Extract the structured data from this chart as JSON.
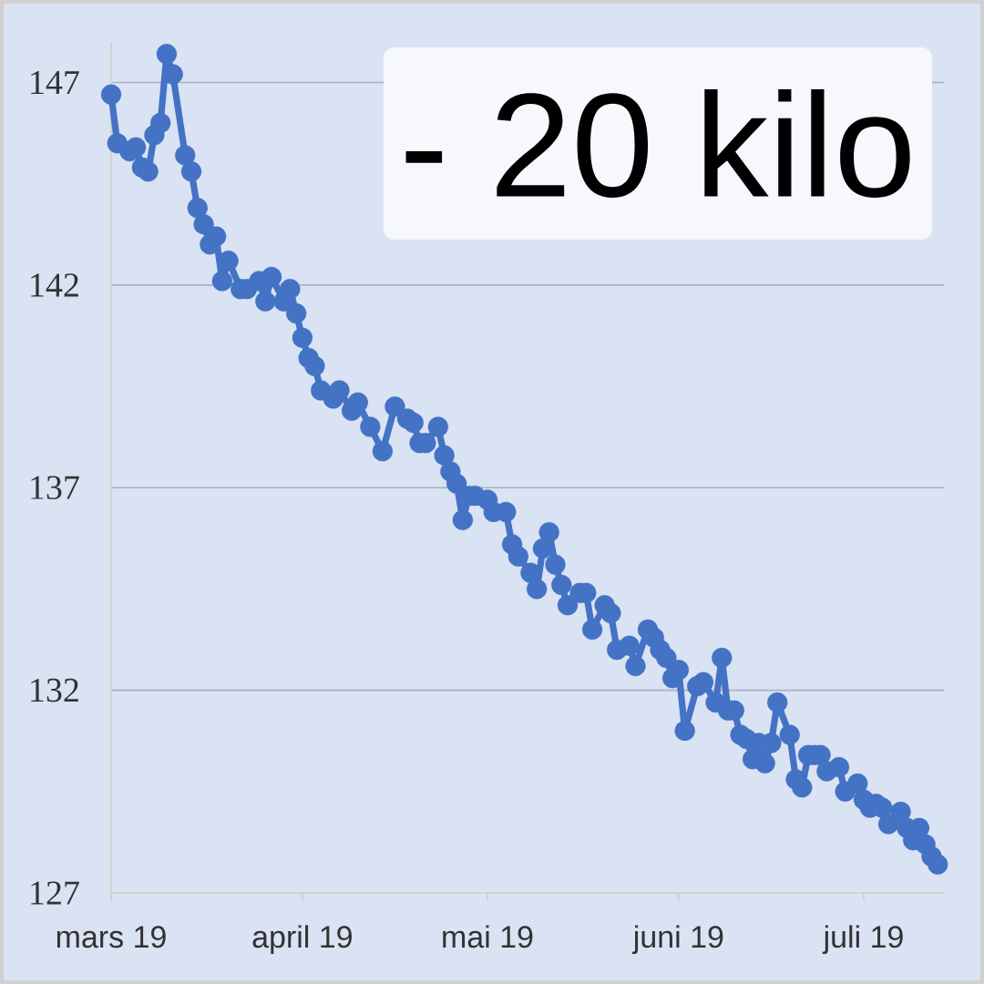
{
  "chart_data": {
    "type": "line",
    "color": "#4472c4",
    "marker": "circle",
    "grid": "y",
    "x": [
      "2019-03-01",
      "2019-03-02",
      "2019-03-04",
      "2019-03-05",
      "2019-03-06",
      "2019-03-07",
      "2019-03-08",
      "2019-03-09",
      "2019-03-10",
      "2019-03-11",
      "2019-03-13",
      "2019-03-14",
      "2019-03-15",
      "2019-03-16",
      "2019-03-17",
      "2019-03-18",
      "2019-03-19",
      "2019-03-20",
      "2019-03-22",
      "2019-03-23",
      "2019-03-25",
      "2019-03-26",
      "2019-03-27",
      "2019-03-29",
      "2019-03-30",
      "2019-03-31",
      "2019-04-01",
      "2019-04-02",
      "2019-04-03",
      "2019-04-04",
      "2019-04-06",
      "2019-04-07",
      "2019-04-09",
      "2019-04-10",
      "2019-04-12",
      "2019-04-14",
      "2019-04-16",
      "2019-04-18",
      "2019-04-19",
      "2019-04-20",
      "2019-04-21",
      "2019-04-23",
      "2019-04-24",
      "2019-04-25",
      "2019-04-26",
      "2019-04-27",
      "2019-04-28",
      "2019-04-29",
      "2019-05-01",
      "2019-05-02",
      "2019-05-04",
      "2019-05-05",
      "2019-05-06",
      "2019-05-08",
      "2019-05-09",
      "2019-05-10",
      "2019-05-11",
      "2019-05-12",
      "2019-05-13",
      "2019-05-14",
      "2019-05-16",
      "2019-05-17",
      "2019-05-18",
      "2019-05-20",
      "2019-05-21",
      "2019-05-22",
      "2019-05-24",
      "2019-05-25",
      "2019-05-27",
      "2019-05-28",
      "2019-05-29",
      "2019-05-30",
      "2019-05-31",
      "2019-06-01",
      "2019-06-02",
      "2019-06-04",
      "2019-06-05",
      "2019-06-07",
      "2019-06-08",
      "2019-06-09",
      "2019-06-10",
      "2019-06-11",
      "2019-06-12",
      "2019-06-13",
      "2019-06-14",
      "2019-06-15",
      "2019-06-16",
      "2019-06-17",
      "2019-06-19",
      "2019-06-20",
      "2019-06-21",
      "2019-06-22",
      "2019-06-23",
      "2019-06-24",
      "2019-06-25",
      "2019-06-27",
      "2019-06-28",
      "2019-06-30",
      "2019-07-01",
      "2019-07-02",
      "2019-07-03",
      "2019-07-04",
      "2019-07-05",
      "2019-07-07",
      "2019-07-08",
      "2019-07-09",
      "2019-07-10",
      "2019-07-11",
      "2019-07-12",
      "2019-07-13"
    ],
    "values": [
      146.7,
      145.5,
      145.3,
      145.4,
      144.9,
      144.8,
      145.7,
      146.0,
      147.7,
      147.2,
      145.2,
      144.8,
      143.9,
      143.5,
      143.0,
      143.2,
      142.1,
      142.6,
      141.9,
      141.9,
      142.1,
      141.6,
      142.2,
      141.6,
      141.9,
      141.3,
      140.7,
      140.2,
      140.0,
      139.4,
      139.2,
      139.4,
      138.9,
      139.1,
      138.5,
      137.9,
      139.0,
      138.7,
      138.6,
      138.1,
      138.1,
      138.5,
      137.8,
      137.4,
      137.1,
      136.2,
      136.8,
      136.8,
      136.7,
      136.4,
      136.4,
      135.6,
      135.3,
      134.9,
      134.5,
      135.5,
      135.9,
      135.1,
      134.6,
      134.1,
      134.4,
      134.4,
      133.5,
      134.1,
      133.9,
      133.0,
      133.1,
      132.6,
      133.5,
      133.3,
      133.0,
      132.8,
      132.3,
      132.5,
      131.0,
      132.1,
      132.2,
      131.7,
      132.8,
      131.5,
      131.5,
      130.9,
      130.8,
      130.3,
      130.7,
      130.2,
      130.7,
      131.7,
      130.9,
      129.8,
      129.6,
      130.4,
      130.4,
      130.4,
      130.0,
      130.1,
      129.5,
      129.7,
      129.3,
      129.1,
      129.2,
      129.1,
      128.7,
      129.0,
      128.6,
      128.3,
      128.6,
      128.2,
      127.9,
      127.7
    ],
    "xlim": [
      "2019-03-01",
      "2019-07-14"
    ],
    "xticks": [
      {
        "value": "2019-03-01",
        "label": "mars 19"
      },
      {
        "value": "2019-04-01",
        "label": "april 19"
      },
      {
        "value": "2019-05-01",
        "label": "mai 19"
      },
      {
        "value": "2019-06-01",
        "label": "juni 19"
      },
      {
        "value": "2019-07-01",
        "label": "juli 19"
      }
    ],
    "ylim": [
      127,
      148
    ],
    "yticks": [
      127,
      132,
      137,
      142,
      147
    ],
    "annotations": [
      "- 20 kilo"
    ]
  }
}
